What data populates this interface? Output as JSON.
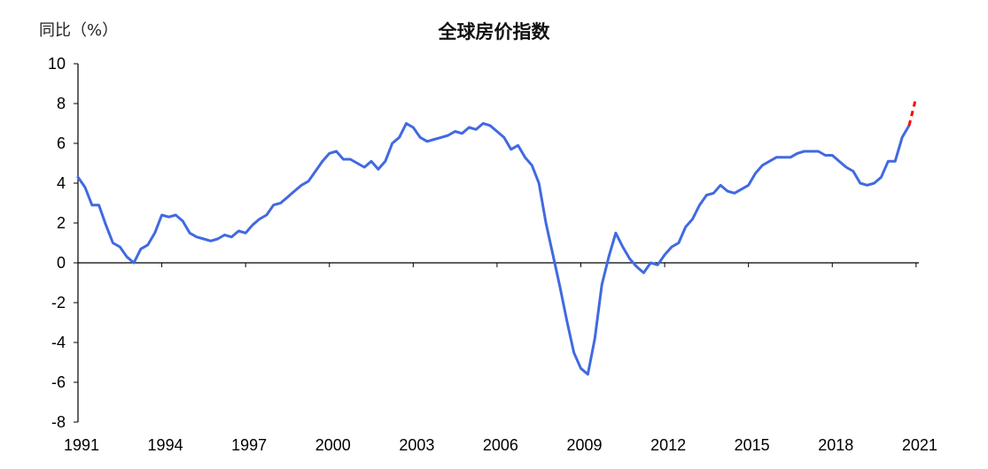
{
  "chart_data": {
    "type": "line",
    "title": "全球房价指数",
    "ylabel": "同比（%）",
    "xlabel": "",
    "xlim": [
      1991,
      2021.1
    ],
    "ylim": [
      -8,
      10
    ],
    "yticks": [
      "10",
      "8",
      "6",
      "4",
      "2",
      "0",
      "-2",
      "-4",
      "-6",
      "-8"
    ],
    "xticks": [
      "1991",
      "1994",
      "1997",
      "2000",
      "2003",
      "2006",
      "2009",
      "2012",
      "2015",
      "2018",
      "2021"
    ],
    "grid": false,
    "series": [
      {
        "color": "#4169E1",
        "style": "solid",
        "points": [
          [
            1991.0,
            4.3
          ],
          [
            1991.25,
            3.8
          ],
          [
            1991.5,
            2.9
          ],
          [
            1991.75,
            2.9
          ],
          [
            1992.0,
            1.9
          ],
          [
            1992.25,
            1.0
          ],
          [
            1992.5,
            0.8
          ],
          [
            1992.75,
            0.3
          ],
          [
            1993.0,
            0.0
          ],
          [
            1993.25,
            0.7
          ],
          [
            1993.5,
            0.9
          ],
          [
            1993.75,
            1.5
          ],
          [
            1994.0,
            2.4
          ],
          [
            1994.25,
            2.3
          ],
          [
            1994.5,
            2.4
          ],
          [
            1994.75,
            2.1
          ],
          [
            1995.0,
            1.5
          ],
          [
            1995.25,
            1.3
          ],
          [
            1995.5,
            1.2
          ],
          [
            1995.75,
            1.1
          ],
          [
            1996.0,
            1.2
          ],
          [
            1996.25,
            1.4
          ],
          [
            1996.5,
            1.3
          ],
          [
            1996.75,
            1.6
          ],
          [
            1997.0,
            1.5
          ],
          [
            1997.25,
            1.9
          ],
          [
            1997.5,
            2.2
          ],
          [
            1997.75,
            2.4
          ],
          [
            1998.0,
            2.9
          ],
          [
            1998.25,
            3.0
          ],
          [
            1998.5,
            3.3
          ],
          [
            1998.75,
            3.6
          ],
          [
            1999.0,
            3.9
          ],
          [
            1999.25,
            4.1
          ],
          [
            1999.5,
            4.6
          ],
          [
            1999.75,
            5.1
          ],
          [
            2000.0,
            5.5
          ],
          [
            2000.25,
            5.6
          ],
          [
            2000.5,
            5.2
          ],
          [
            2000.75,
            5.2
          ],
          [
            2001.0,
            5.0
          ],
          [
            2001.25,
            4.8
          ],
          [
            2001.5,
            5.1
          ],
          [
            2001.75,
            4.7
          ],
          [
            2002.0,
            5.1
          ],
          [
            2002.25,
            6.0
          ],
          [
            2002.5,
            6.3
          ],
          [
            2002.75,
            7.0
          ],
          [
            2003.0,
            6.8
          ],
          [
            2003.25,
            6.3
          ],
          [
            2003.5,
            6.1
          ],
          [
            2003.75,
            6.2
          ],
          [
            2004.0,
            6.3
          ],
          [
            2004.25,
            6.4
          ],
          [
            2004.5,
            6.6
          ],
          [
            2004.75,
            6.5
          ],
          [
            2005.0,
            6.8
          ],
          [
            2005.25,
            6.7
          ],
          [
            2005.5,
            7.0
          ],
          [
            2005.75,
            6.9
          ],
          [
            2006.0,
            6.6
          ],
          [
            2006.25,
            6.3
          ],
          [
            2006.5,
            5.7
          ],
          [
            2006.75,
            5.9
          ],
          [
            2007.0,
            5.3
          ],
          [
            2007.25,
            4.9
          ],
          [
            2007.5,
            4.0
          ],
          [
            2007.75,
            2.0
          ],
          [
            2008.0,
            0.4
          ],
          [
            2008.25,
            -1.2
          ],
          [
            2008.5,
            -2.9
          ],
          [
            2008.75,
            -4.5
          ],
          [
            2009.0,
            -5.3
          ],
          [
            2009.25,
            -5.6
          ],
          [
            2009.5,
            -3.8
          ],
          [
            2009.75,
            -1.1
          ],
          [
            2010.0,
            0.3
          ],
          [
            2010.25,
            1.5
          ],
          [
            2010.5,
            0.8
          ],
          [
            2010.75,
            0.2
          ],
          [
            2011.0,
            -0.2
          ],
          [
            2011.25,
            -0.5
          ],
          [
            2011.5,
            0.0
          ],
          [
            2011.75,
            -0.1
          ],
          [
            2012.0,
            0.4
          ],
          [
            2012.25,
            0.8
          ],
          [
            2012.5,
            1.0
          ],
          [
            2012.75,
            1.8
          ],
          [
            2013.0,
            2.2
          ],
          [
            2013.25,
            2.9
          ],
          [
            2013.5,
            3.4
          ],
          [
            2013.75,
            3.5
          ],
          [
            2014.0,
            3.9
          ],
          [
            2014.25,
            3.6
          ],
          [
            2014.5,
            3.5
          ],
          [
            2014.75,
            3.7
          ],
          [
            2015.0,
            3.9
          ],
          [
            2015.25,
            4.5
          ],
          [
            2015.5,
            4.9
          ],
          [
            2015.75,
            5.1
          ],
          [
            2016.0,
            5.3
          ],
          [
            2016.25,
            5.3
          ],
          [
            2016.5,
            5.3
          ],
          [
            2016.75,
            5.5
          ],
          [
            2017.0,
            5.6
          ],
          [
            2017.25,
            5.6
          ],
          [
            2017.5,
            5.6
          ],
          [
            2017.75,
            5.4
          ],
          [
            2018.0,
            5.4
          ],
          [
            2018.25,
            5.1
          ],
          [
            2018.5,
            4.8
          ],
          [
            2018.75,
            4.6
          ],
          [
            2019.0,
            4.0
          ],
          [
            2019.25,
            3.9
          ],
          [
            2019.5,
            4.0
          ],
          [
            2019.75,
            4.3
          ],
          [
            2020.0,
            5.1
          ],
          [
            2020.25,
            5.1
          ],
          [
            2020.5,
            6.3
          ],
          [
            2020.75,
            6.9
          ]
        ]
      },
      {
        "color": "#FF0000",
        "style": "dashed",
        "points": [
          [
            2020.75,
            6.9
          ],
          [
            2021.0,
            8.3
          ]
        ]
      }
    ]
  }
}
